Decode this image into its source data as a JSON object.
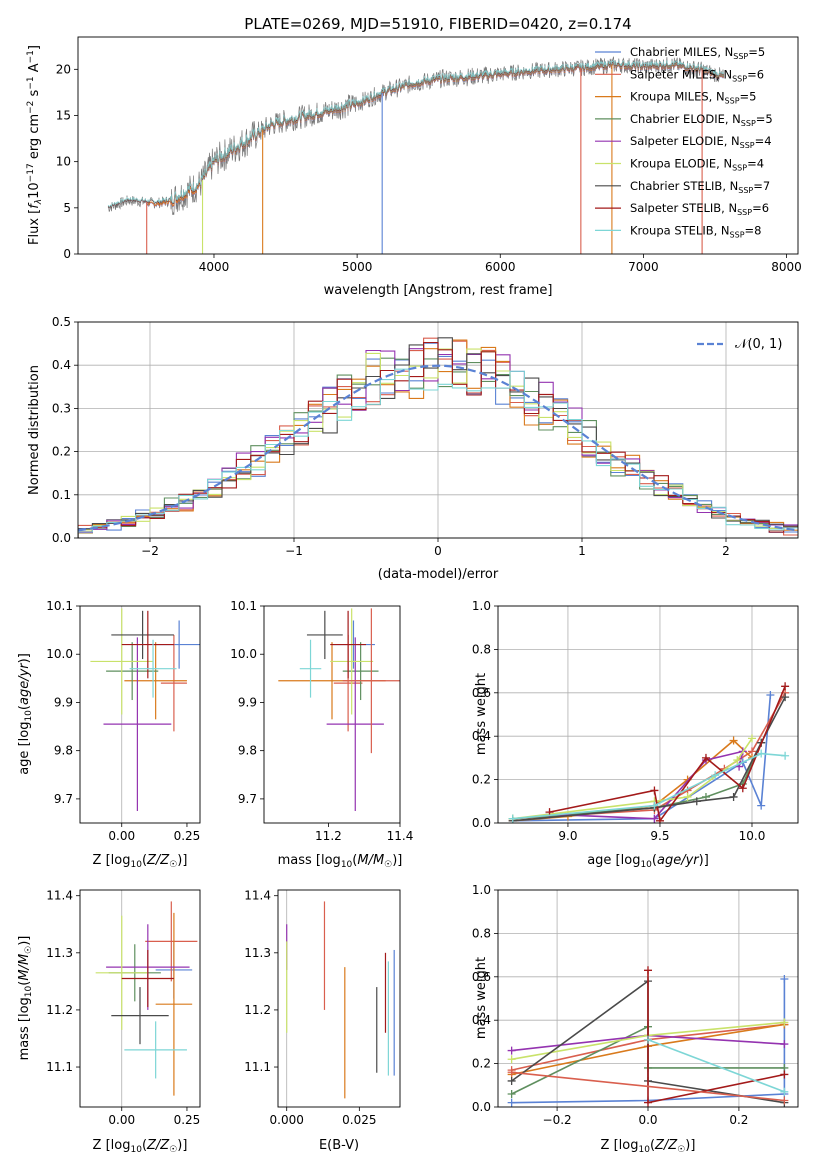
{
  "colors": {
    "Chabrier MILES": "#5a82d4",
    "Salpeter MILES": "#d95f4e",
    "Kroupa MILES": "#d97a1c",
    "Chabrier ELODIE": "#5f8f5f",
    "Salpeter ELODIE": "#9433b0",
    "Kroupa ELODIE": "#c9e26a",
    "Chabrier STELIB": "#4a4a4a",
    "Salpeter STELIB": "#a31a1a",
    "Kroupa STELIB": "#7dd6d6",
    "data": "#777777",
    "gaussian": "#5a82d4"
  },
  "chart_data": [
    {
      "id": "spectrum",
      "type": "line",
      "title": "PLATE=0269, MJD=51910, FIBERID=0420, z=0.174",
      "xlabel": "wavelength [Angstrom, rest frame]",
      "ylabel_parts": [
        "Flux [",
        "f",
        "λ",
        "10",
        "−17",
        " erg cm",
        "−2",
        " s",
        "−1",
        " A",
        "−1",
        "]"
      ],
      "xlim": [
        3050,
        8080
      ],
      "ylim": [
        0,
        23.5
      ],
      "xticks": [
        4000,
        5000,
        6000,
        7000,
        8000
      ],
      "yticks": [
        0,
        5,
        10,
        15,
        20
      ],
      "legend": [
        {
          "name": "Chabrier MILES",
          "nssp": "5"
        },
        {
          "name": "Salpeter MILES",
          "nssp": "6"
        },
        {
          "name": "Kroupa MILES",
          "nssp": "5"
        },
        {
          "name": "Chabrier ELODIE",
          "nssp": "5"
        },
        {
          "name": "Salpeter ELODIE",
          "nssp": "4"
        },
        {
          "name": "Kroupa ELODIE",
          "nssp": "4"
        },
        {
          "name": "Chabrier STELIB",
          "nssp": "7"
        },
        {
          "name": "Salpeter STELIB",
          "nssp": "6"
        },
        {
          "name": "Kroupa STELIB",
          "nssp": "8"
        }
      ],
      "legend_placement": "right",
      "continuum": [
        [
          3260,
          5.0
        ],
        [
          3400,
          5.8
        ],
        [
          3600,
          5.5
        ],
        [
          3700,
          5.8
        ],
        [
          3900,
          7.5
        ],
        [
          4000,
          10.0
        ],
        [
          4200,
          12.0
        ],
        [
          4400,
          14.0
        ],
        [
          4600,
          14.8
        ],
        [
          4800,
          15.5
        ],
        [
          5000,
          16.3
        ],
        [
          5200,
          17.6
        ],
        [
          5400,
          18.5
        ],
        [
          5600,
          19.0
        ],
        [
          5800,
          19.2
        ],
        [
          6000,
          19.5
        ],
        [
          6200,
          19.8
        ],
        [
          6400,
          20.0
        ],
        [
          6600,
          20.2
        ],
        [
          6800,
          20.5
        ],
        [
          7000,
          20.3
        ],
        [
          7200,
          20.5
        ],
        [
          7400,
          20.0
        ],
        [
          7600,
          19.0
        ]
      ],
      "spikes_down": [
        3530,
        3920,
        4340,
        5175,
        6563,
        6780,
        7410
      ]
    },
    {
      "id": "residuals",
      "type": "step",
      "xlabel": "(data-model)/error",
      "ylabel": "Normed distribution",
      "xlim": [
        -2.5,
        2.5
      ],
      "ylim": [
        0,
        0.5
      ],
      "xticks": [
        -2,
        -1,
        0,
        1,
        2
      ],
      "yticks": [
        0.0,
        0.1,
        0.2,
        0.3,
        0.4,
        0.5
      ],
      "grid": true,
      "legend_label": "𝒩(0, 1)",
      "legend_placement": "top-right"
    },
    {
      "id": "age_vs_Z",
      "type": "errorbar",
      "xlabel": "Z [log10(Z/Z☉)]",
      "ylabel": "age  [log10(age/yr)]",
      "xlim": [
        -0.16,
        0.3
      ],
      "ylim": [
        9.65,
        10.1
      ],
      "xticks": [
        0.0,
        0.25
      ],
      "yticks": [
        9.7,
        9.8,
        9.9,
        10.0,
        10.1
      ],
      "points": [
        {
          "c": "Chabrier MILES",
          "x": 0.22,
          "xe": 0.1,
          "y": 10.02,
          "ye": 0.05
        },
        {
          "c": "Salpeter MILES",
          "x": 0.2,
          "xe": 0.05,
          "y": 9.94,
          "ye": 0.1
        },
        {
          "c": "Kroupa MILES",
          "x": 0.13,
          "xe": 0.12,
          "y": 9.945,
          "ye": 0.08
        },
        {
          "c": "Chabrier ELODIE",
          "x": 0.04,
          "xe": 0.1,
          "y": 9.965,
          "ye": 0.06
        },
        {
          "c": "Salpeter ELODIE",
          "x": 0.06,
          "xe": 0.13,
          "y": 9.855,
          "ye": 0.18
        },
        {
          "c": "Kroupa ELODIE",
          "x": 0.0,
          "xe": 0.12,
          "y": 9.985,
          "ye": 0.11
        },
        {
          "c": "Chabrier STELIB",
          "x": 0.08,
          "xe": 0.12,
          "y": 10.04,
          "ye": 0.05
        },
        {
          "c": "Salpeter STELIB",
          "x": 0.1,
          "xe": 0.1,
          "y": 10.02,
          "ye": 0.07
        },
        {
          "c": "Kroupa STELIB",
          "x": 0.12,
          "xe": 0.09,
          "y": 9.97,
          "ye": 0.06
        }
      ]
    },
    {
      "id": "age_vs_mass",
      "type": "errorbar",
      "xlabel": "mass [log10(M/M☉)]",
      "ylim": [
        9.65,
        10.1
      ],
      "xlim": [
        11.02,
        11.4
      ],
      "xticks": [
        11.2,
        11.4
      ],
      "yticks": [
        9.7,
        9.8,
        9.9,
        10.0,
        10.1
      ],
      "points": [
        {
          "c": "Chabrier MILES",
          "x": 11.27,
          "xe": 0.06,
          "y": 10.02,
          "ye": 0.05
        },
        {
          "c": "Salpeter MILES",
          "x": 11.255,
          "xe": 0.04,
          "y": 9.94,
          "ye": 0.1
        },
        {
          "c": "Kroupa MILES",
          "x": 11.21,
          "xe": 0.15,
          "y": 9.945,
          "ye": 0.08
        },
        {
          "c": "Chabrier ELODIE",
          "x": 11.29,
          "xe": 0.05,
          "y": 9.965,
          "ye": 0.06
        },
        {
          "c": "Salpeter ELODIE",
          "x": 11.275,
          "xe": 0.08,
          "y": 9.855,
          "ye": 0.18
        },
        {
          "c": "Kroupa ELODIE",
          "x": 11.265,
          "xe": 0.06,
          "y": 9.985,
          "ye": 0.11
        },
        {
          "c": "Chabrier STELIB",
          "x": 11.19,
          "xe": 0.05,
          "y": 10.04,
          "ye": 0.05
        },
        {
          "c": "Salpeter STELIB",
          "x": 11.255,
          "xe": 0.05,
          "y": 10.02,
          "ye": 0.07
        },
        {
          "c": "Kroupa STELIB",
          "x": 11.15,
          "xe": 0.03,
          "y": 9.97,
          "ye": 0.06
        },
        {
          "c": "Salpeter MILES",
          "x": 11.32,
          "xe": 0.08,
          "y": 9.945,
          "ye": 0.15
        }
      ]
    },
    {
      "id": "weight_vs_age",
      "type": "line",
      "xlabel": "age  [log10(age/yr)]",
      "ylabel": "mass weight",
      "xlim": [
        8.62,
        10.25
      ],
      "ylim": [
        0,
        1.0
      ],
      "xticks": [
        9.0,
        9.5,
        10.0
      ],
      "yticks": [
        0.0,
        0.2,
        0.4,
        0.6,
        0.8,
        1.0
      ],
      "grid": true,
      "series": [
        {
          "c": "Chabrier MILES",
          "x": [
            8.7,
            9.47,
            9.95,
            10.05,
            10.1
          ],
          "y": [
            0.01,
            0.02,
            0.28,
            0.08,
            0.59
          ]
        },
        {
          "c": "Salpeter MILES",
          "x": [
            8.7,
            9.47,
            9.65,
            9.85,
            10.0,
            10.18
          ],
          "y": [
            0.02,
            0.06,
            0.15,
            0.25,
            0.33,
            0.6
          ]
        },
        {
          "c": "Kroupa MILES",
          "x": [
            8.7,
            9.0,
            9.47,
            9.65,
            9.9,
            10.0
          ],
          "y": [
            0.01,
            0.03,
            0.08,
            0.2,
            0.38,
            0.3
          ]
        },
        {
          "c": "Chabrier ELODIE",
          "x": [
            8.7,
            9.47,
            9.75,
            9.95,
            10.05
          ],
          "y": [
            0.02,
            0.07,
            0.12,
            0.18,
            0.37
          ]
        },
        {
          "c": "Salpeter ELODIE",
          "x": [
            8.9,
            9.47,
            9.75,
            9.95,
            9.93
          ],
          "y": [
            0.04,
            0.02,
            0.29,
            0.33,
            0.26
          ]
        },
        {
          "c": "Kroupa ELODIE",
          "x": [
            8.7,
            9.47,
            9.65,
            9.92,
            10.0
          ],
          "y": [
            0.02,
            0.1,
            0.12,
            0.29,
            0.39
          ]
        },
        {
          "c": "Chabrier STELIB",
          "x": [
            8.7,
            9.47,
            9.7,
            9.9,
            10.05,
            10.18
          ],
          "y": [
            0.01,
            0.07,
            0.1,
            0.12,
            0.37,
            0.58
          ]
        },
        {
          "c": "Salpeter STELIB",
          "x": [
            8.9,
            9.47,
            9.5,
            9.75,
            9.95,
            10.18
          ],
          "y": [
            0.05,
            0.15,
            0.01,
            0.3,
            0.16,
            0.63
          ]
        },
        {
          "c": "Kroupa STELIB",
          "x": [
            8.7,
            9.47,
            9.8,
            10.05,
            10.18
          ],
          "y": [
            0.02,
            0.08,
            0.22,
            0.32,
            0.31
          ]
        }
      ]
    },
    {
      "id": "mass_vs_Z",
      "type": "errorbar",
      "xlabel": "Z [log10(Z/Z☉)]",
      "ylabel": "mass [log10(M/M☉)]",
      "xlim": [
        -0.16,
        0.3
      ],
      "ylim": [
        11.03,
        11.41
      ],
      "xticks": [
        0.0,
        0.25
      ],
      "yticks": [
        11.1,
        11.2,
        11.3,
        11.4
      ],
      "points": [
        {
          "c": "Chabrier MILES",
          "x": 0.2,
          "xe": 0.07,
          "y": 11.27,
          "ye": 0.05
        },
        {
          "c": "Salpeter MILES",
          "x": 0.19,
          "xe": 0.1,
          "y": 11.32,
          "ye": 0.07
        },
        {
          "c": "Kroupa MILES",
          "x": 0.2,
          "xe": 0.07,
          "y": 11.21,
          "ye": 0.16
        },
        {
          "c": "Chabrier ELODIE",
          "x": 0.05,
          "xe": 0.1,
          "y": 11.265,
          "ye": 0.05
        },
        {
          "c": "Salpeter ELODIE",
          "x": 0.1,
          "xe": 0.16,
          "y": 11.275,
          "ye": 0.075
        },
        {
          "c": "Kroupa ELODIE",
          "x": 0.0,
          "xe": 0.1,
          "y": 11.265,
          "ye": 0.1
        },
        {
          "c": "Chabrier STELIB",
          "x": 0.07,
          "xe": 0.11,
          "y": 11.19,
          "ye": 0.05
        },
        {
          "c": "Salpeter STELIB",
          "x": 0.1,
          "xe": 0.1,
          "y": 11.255,
          "ye": 0.05
        },
        {
          "c": "Kroupa STELIB",
          "x": 0.13,
          "xe": 0.12,
          "y": 11.13,
          "ye": 0.05
        }
      ]
    },
    {
      "id": "mass_vs_EBV",
      "type": "errorbar",
      "xlabel": "E(B-V)",
      "xlim": [
        -0.003,
        0.039
      ],
      "ylim": [
        11.03,
        11.41
      ],
      "xticks": [
        0.0,
        0.025
      ],
      "yticks": [
        11.1,
        11.2,
        11.3,
        11.4
      ],
      "points": [
        {
          "c": "Chabrier MILES",
          "x": 0.037,
          "ye": 0.11,
          "y": 11.195
        },
        {
          "c": "Salpeter MILES",
          "x": 0.013,
          "ye": 0.095,
          "y": 11.295
        },
        {
          "c": "Kroupa MILES",
          "x": 0.02,
          "ye": 0.115,
          "y": 11.16
        },
        {
          "c": "Salpeter ELODIE",
          "x": 0.0,
          "ye": 0.04,
          "y": 11.31
        },
        {
          "c": "Kroupa ELODIE",
          "x": 0.0,
          "ye": 0.08,
          "y": 11.24
        },
        {
          "c": "Chabrier STELIB",
          "x": 0.031,
          "ye": 0.075,
          "y": 11.165
        },
        {
          "c": "Salpeter STELIB",
          "x": 0.034,
          "ye": 0.07,
          "y": 11.23
        },
        {
          "c": "Kroupa STELIB",
          "x": 0.035,
          "ye": 0.1,
          "y": 11.185
        }
      ]
    },
    {
      "id": "weight_vs_Z",
      "type": "line",
      "xlabel": "Z [log10(Z/Z☉)]",
      "ylabel": "mass weight",
      "xlim": [
        -0.33,
        0.33
      ],
      "ylim": [
        0,
        1.0
      ],
      "xticks": [
        -0.2,
        0.0,
        0.2
      ],
      "yticks": [
        0.0,
        0.2,
        0.4,
        0.6,
        0.8,
        1.0
      ],
      "grid": true,
      "series": [
        {
          "c": "Chabrier MILES",
          "x": [
            -0.3,
            0.0,
            0.3,
            0.3
          ],
          "y": [
            0.02,
            0.03,
            0.06,
            0.59
          ]
        },
        {
          "c": "Salpeter MILES",
          "x": [
            -0.3,
            0.0,
            0.3
          ],
          "y": [
            0.17,
            0.31,
            0.38
          ]
        },
        {
          "c": "Kroupa MILES",
          "x": [
            -0.3,
            0.0,
            0.3
          ],
          "y": [
            0.15,
            0.28,
            0.38
          ]
        },
        {
          "c": "Chabrier ELODIE",
          "x": [
            -0.3,
            0.0,
            0.0,
            0.3
          ],
          "y": [
            0.06,
            0.37,
            0.18,
            0.18
          ]
        },
        {
          "c": "Salpeter ELODIE",
          "x": [
            -0.3,
            0.0,
            0.3
          ],
          "y": [
            0.26,
            0.33,
            0.29
          ]
        },
        {
          "c": "Kroupa ELODIE",
          "x": [
            -0.3,
            0.0,
            0.3
          ],
          "y": [
            0.22,
            0.33,
            0.39
          ]
        },
        {
          "c": "Chabrier STELIB",
          "x": [
            -0.3,
            0.0,
            0.0,
            0.3
          ],
          "y": [
            0.12,
            0.58,
            0.12,
            0.02
          ]
        },
        {
          "c": "Salpeter STELIB",
          "x": [
            0.0,
            0.0,
            0.3
          ],
          "y": [
            0.63,
            0.02,
            0.15
          ]
        },
        {
          "c": "Kroupa STELIB",
          "x": [
            0.0,
            0.3
          ],
          "y": [
            0.31,
            0.07
          ]
        }
      ],
      "extra": {
        "c": "Salpeter MILES",
        "x": [
          -0.3,
          0.3
        ],
        "y": [
          0.16,
          0.03
        ]
      }
    }
  ]
}
